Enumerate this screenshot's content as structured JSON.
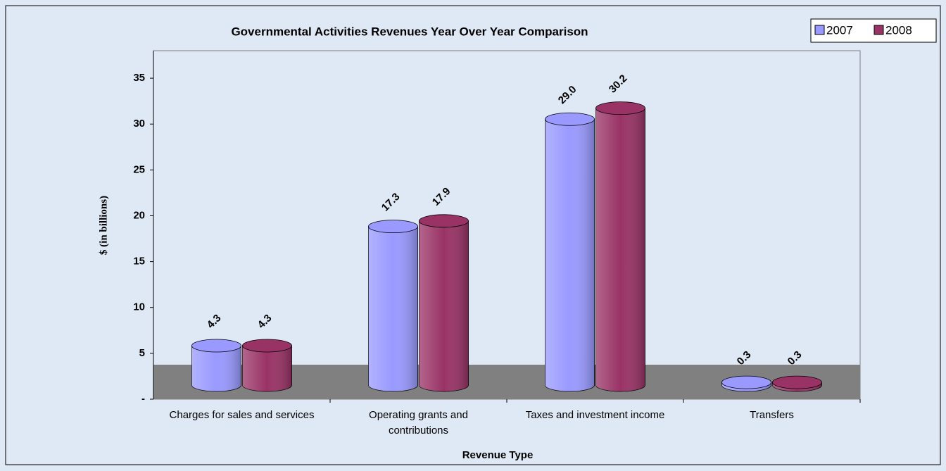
{
  "chart_data": {
    "type": "bar",
    "title": "Governmental Activities Revenues Year Over Year Comparison",
    "x_label": "Revenue Type",
    "y_label": "$ (in billions)",
    "categories": [
      "Charges for sales and services",
      "Operating grants and contributions",
      "Taxes and investment income",
      "Transfers"
    ],
    "series": [
      {
        "name": "2007",
        "color": "#9999ff",
        "values": [
          4.3,
          17.3,
          29.0,
          0.3
        ],
        "value_labels": [
          "4.3",
          "17.3",
          "29.0",
          "0.3"
        ]
      },
      {
        "name": "2008",
        "color": "#993366",
        "values": [
          4.3,
          17.9,
          30.2,
          0.3
        ]
      }
    ],
    "ylim": [
      0,
      38
    ],
    "yticks": [
      {
        "value": 0,
        "label": "-"
      },
      5,
      10,
      15,
      20,
      25,
      30,
      35
    ],
    "legend": "top-right"
  }
}
